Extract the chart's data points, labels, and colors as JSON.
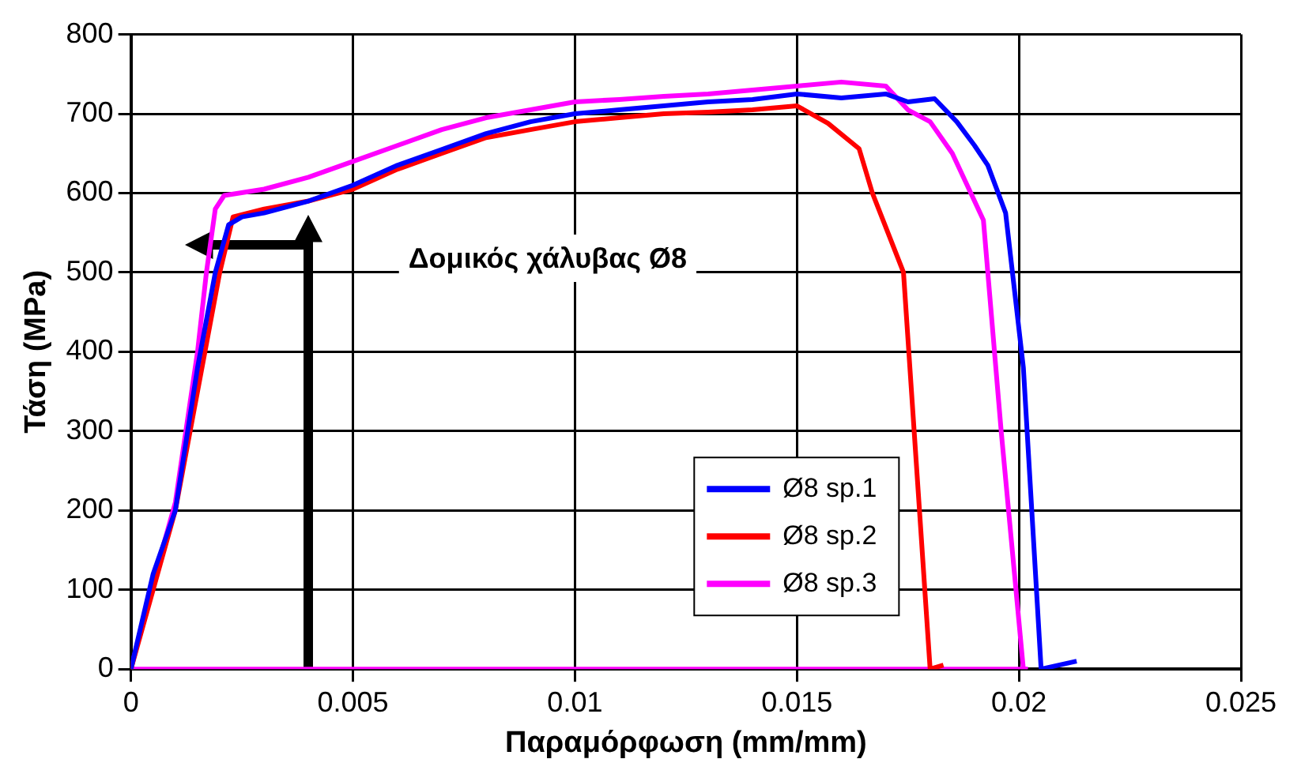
{
  "chart_data": {
    "type": "line",
    "xlabel": "Παραμόρφωση (mm/mm)",
    "ylabel": "Τάση (MPa)",
    "xlim": [
      0,
      0.025
    ],
    "ylim": [
      0,
      800
    ],
    "xticks": [
      0,
      0.005,
      0.01,
      0.015,
      0.02,
      0.025
    ],
    "yticks": [
      0,
      100,
      200,
      300,
      400,
      500,
      600,
      700,
      800
    ],
    "grid": true,
    "legend": "bottom",
    "marker": "none",
    "line_style": "solid",
    "annotations": [
      "Δομικός χάλυβας Ø8"
    ],
    "series": [
      {
        "name": "Ø8 sp.1",
        "color": "#0000ff",
        "x": [
          0,
          0.0005,
          0.001,
          0.0015,
          0.0019,
          0.0022,
          0.0025,
          0.003,
          0.004,
          0.005,
          0.006,
          0.007,
          0.008,
          0.009,
          0.01,
          0.011,
          0.012,
          0.013,
          0.014,
          0.015,
          0.016,
          0.017,
          0.0175,
          0.0181,
          0.0186,
          0.019,
          0.0193,
          0.0197,
          0.0201,
          0.0205,
          0.0209,
          0.0213
        ],
        "values": [
          0,
          120,
          200,
          380,
          500,
          560,
          570,
          575,
          590,
          610,
          635,
          655,
          675,
          690,
          700,
          705,
          710,
          715,
          718,
          725,
          720,
          725,
          715,
          719,
          690,
          660,
          635,
          575,
          380,
          0,
          5,
          10
        ]
      },
      {
        "name": "Ø8 sp.2",
        "color": "#ff0000",
        "x": [
          0,
          0.0005,
          0.001,
          0.0015,
          0.002,
          0.0023,
          0.003,
          0.004,
          0.005,
          0.006,
          0.007,
          0.008,
          0.009,
          0.01,
          0.011,
          0.012,
          0.013,
          0.014,
          0.015,
          0.0157,
          0.0164,
          0.0167,
          0.0174,
          0.0177,
          0.018,
          0.0183
        ],
        "values": [
          0,
          100,
          200,
          350,
          500,
          570,
          580,
          590,
          605,
          630,
          650,
          670,
          680,
          690,
          695,
          700,
          702,
          705,
          710,
          688,
          656,
          600,
          500,
          250,
          0,
          5
        ]
      },
      {
        "name": "Ø8 sp.3",
        "color": "#ff00ff",
        "x": [
          0,
          0.0005,
          0.001,
          0.0015,
          0.0017,
          0.0019,
          0.0021,
          0.003,
          0.004,
          0.005,
          0.006,
          0.007,
          0.008,
          0.009,
          0.01,
          0.011,
          0.012,
          0.013,
          0.014,
          0.015,
          0.016,
          0.017,
          0.0175,
          0.018,
          0.0185,
          0.0192,
          0.0196,
          0.0201,
          0.0202
        ],
        "values": [
          0,
          110,
          210,
          400,
          500,
          580,
          597,
          605,
          620,
          640,
          660,
          680,
          695,
          705,
          715,
          718,
          722,
          725,
          730,
          735,
          740,
          735,
          705,
          690,
          650,
          566,
          300,
          0,
          0
        ]
      },
      {
        "color": "#ff00ff",
        "x": [
          0,
          0.0202
        ],
        "values": [
          0,
          0
        ]
      }
    ]
  }
}
